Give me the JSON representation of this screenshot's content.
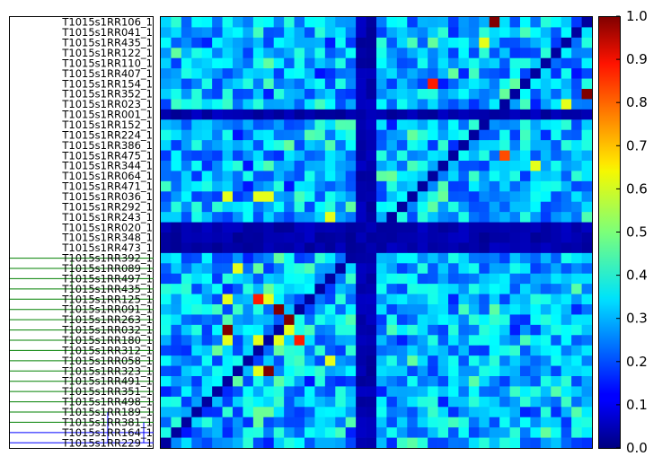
{
  "chart_data": {
    "type": "heatmap",
    "title": "",
    "xlabel": "",
    "ylabel": "",
    "row_labels": [
      "T1015s1RR106_1",
      "T1015s1RR041_1",
      "T1015s1RR435_1",
      "T1015s1RR122_1",
      "T1015s1RR110_1",
      "T1015s1RR407_1",
      "T1015s1RR154_1",
      "T1015s1RR352_1",
      "T1015s1RR023_1",
      "T1015s1RR001_1",
      "T1015s1RR152_1",
      "T1015s1RR224_1",
      "T1015s1RR386_1",
      "T1015s1RR475_1",
      "T1015s1RR344_1",
      "T1015s1RR064_1",
      "T1015s1RR471_1",
      "T1015s1RR036_1",
      "T1015s1RR292_1",
      "T1015s1RR243_1",
      "T1015s1RR020_1",
      "T1015s1RR348_1",
      "T1015s1RR473_1",
      "T1015s1RR392_1",
      "T1015s1RR089_1",
      "T1015s1RR497_1",
      "T1015s1RR435_1",
      "T1015s1RR125_1",
      "T1015s1RR091_1",
      "T1015s1RR263_1",
      "T1015s1RR032_1",
      "T1015s1RR180_1",
      "T1015s1RR312_1",
      "T1015s1RR058_1",
      "T1015s1RR323_1",
      "T1015s1RR491_1",
      "T1015s1RR351_1",
      "T1015s1RR498_1",
      "T1015s1RR189_1",
      "T1015s1RR381_1",
      "T1015s1RR164_1",
      "T1015s1RR229_1"
    ],
    "colorbar": {
      "min": 0.0,
      "max": 1.0,
      "ticks": [
        "0.0",
        "0.1",
        "0.2",
        "0.3",
        "0.4",
        "0.5",
        "0.6",
        "0.7",
        "0.8",
        "0.9",
        "1.0"
      ]
    },
    "colormap": "jet",
    "base_level": 0.3,
    "dark_rows": [
      9,
      20,
      21,
      22
    ],
    "dark_cols": [
      19,
      20
    ],
    "hot_cells": [
      [
        0,
        32,
        1.0
      ],
      [
        6,
        26,
        0.85
      ],
      [
        7,
        41,
        1.0
      ],
      [
        13,
        33,
        0.8
      ],
      [
        27,
        9,
        0.85
      ],
      [
        28,
        11,
        1.0
      ],
      [
        29,
        12,
        1.0
      ],
      [
        30,
        6,
        1.0
      ],
      [
        31,
        13,
        0.85
      ],
      [
        34,
        10,
        1.0
      ],
      [
        27,
        6,
        0.6
      ],
      [
        27,
        10,
        0.6
      ],
      [
        30,
        12,
        0.6
      ],
      [
        31,
        6,
        0.6
      ],
      [
        31,
        9,
        0.6
      ],
      [
        31,
        11,
        0.6
      ],
      [
        34,
        9,
        0.6
      ],
      [
        17,
        6,
        0.6
      ],
      [
        17,
        9,
        0.6
      ],
      [
        17,
        10,
        0.6
      ],
      [
        24,
        7,
        0.6
      ],
      [
        19,
        16,
        0.6
      ],
      [
        8,
        39,
        0.6
      ],
      [
        33,
        16,
        0.6
      ],
      [
        2,
        31,
        0.6
      ],
      [
        14,
        36,
        0.6
      ]
    ]
  }
}
